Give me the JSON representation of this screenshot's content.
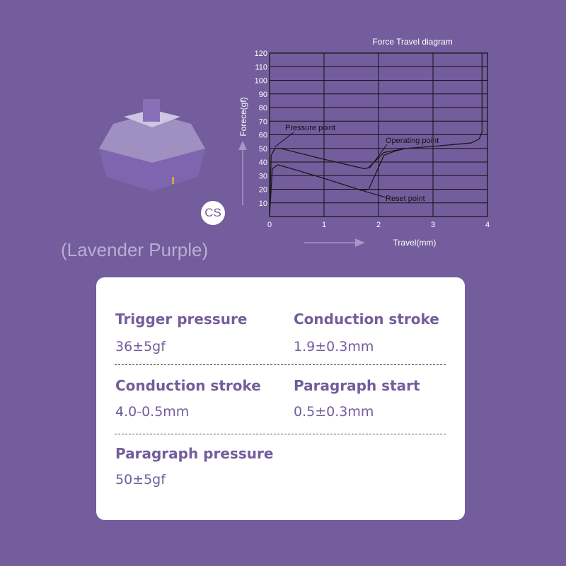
{
  "product": {
    "variant": "(Lavender Purple)",
    "badge": "CS"
  },
  "chart_data": {
    "type": "line",
    "title": "Force Travel diagram",
    "xlabel": "Travel(mm)",
    "ylabel": "Forece(gf)",
    "xlim": [
      0,
      4
    ],
    "ylim": [
      0,
      120
    ],
    "xticks": [
      0,
      1,
      2,
      3,
      4
    ],
    "yticks": [
      10,
      20,
      30,
      40,
      50,
      60,
      70,
      80,
      90,
      100,
      110,
      120
    ],
    "grid": true,
    "series": [
      {
        "x": [
          0,
          0.03,
          0.1,
          0.2,
          1.0,
          1.75,
          1.82,
          2.1,
          2.5,
          3.0,
          3.7,
          3.85,
          3.9,
          3.9
        ],
        "y": [
          2,
          45,
          50,
          50,
          42,
          35,
          36,
          47,
          50,
          51.5,
          54,
          57,
          62,
          120
        ]
      },
      {
        "x": [
          0,
          0.05,
          0.15,
          0.5,
          1.0,
          1.7,
          1.82,
          2.1,
          2.3,
          2.5
        ],
        "y": [
          0,
          35,
          38,
          34,
          28,
          19,
          20,
          45,
          48,
          50
        ]
      }
    ],
    "annotations": [
      "Pressure point",
      "Operating point",
      "Reset point"
    ],
    "colors": {
      "line": "#1a1a1a",
      "axis_text": "#ffffff"
    }
  },
  "specs": [
    {
      "label": "Trigger pressure",
      "value": "36±5gf"
    },
    {
      "label": "Conduction stroke",
      "value": "1.9±0.3mm"
    },
    {
      "label": "Conduction stroke",
      "value": "4.0-0.5mm"
    },
    {
      "label": "Paragraph start",
      "value": "0.5±0.3mm"
    },
    {
      "label": "Paragraph pressure",
      "value": "50±5gf"
    }
  ]
}
